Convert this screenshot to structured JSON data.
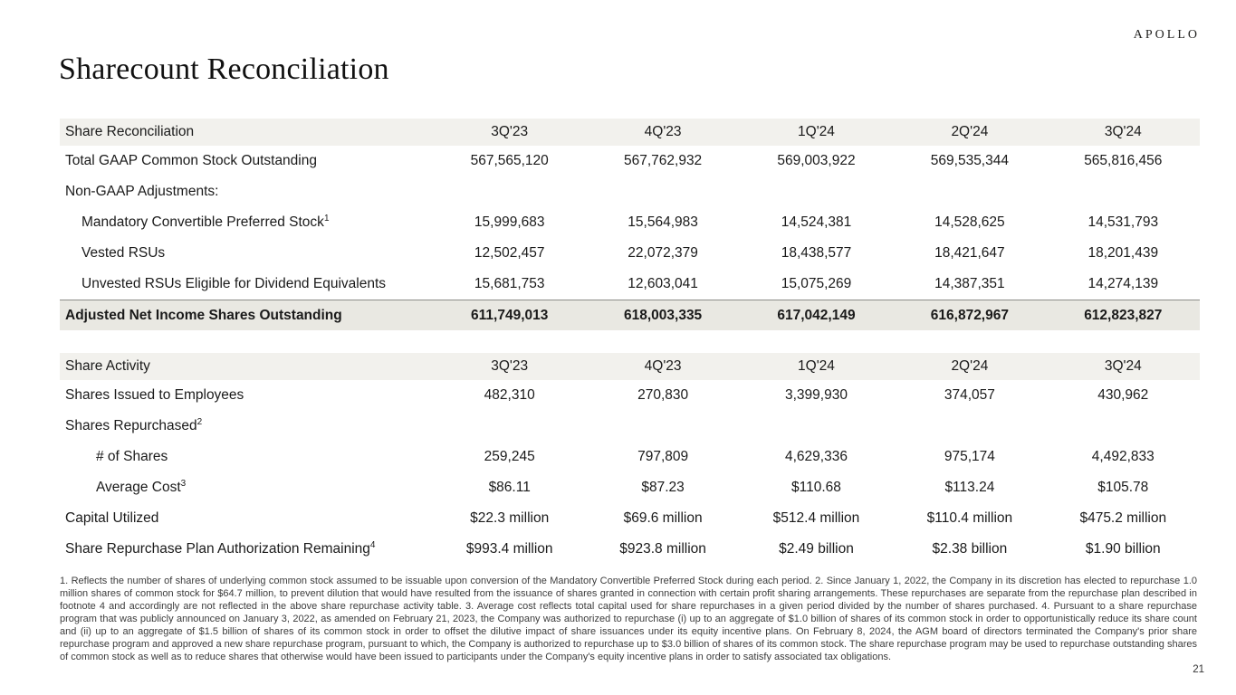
{
  "brand": {
    "logo": "APOLLO"
  },
  "page": {
    "title": "Sharecount Reconciliation",
    "number": "21"
  },
  "share_reconciliation": {
    "title": "Share Reconciliation",
    "columns": [
      "3Q'23",
      "4Q'23",
      "1Q'24",
      "2Q'24",
      "3Q'24"
    ],
    "rows": [
      {
        "label": "Total GAAP Common Stock Outstanding",
        "sup": "",
        "values": [
          "567,565,120",
          "567,762,932",
          "569,003,922",
          "569,535,344",
          "565,816,456"
        ]
      },
      {
        "label": "Non-GAAP Adjustments:",
        "sup": "",
        "values": [
          "",
          "",
          "",
          "",
          ""
        ]
      },
      {
        "label": "Mandatory Convertible Preferred Stock",
        "sup": "1",
        "values": [
          "15,999,683",
          "15,564,983",
          "14,524,381",
          "14,528,625",
          "14,531,793"
        ]
      },
      {
        "label": "Vested RSUs",
        "sup": "",
        "values": [
          "12,502,457",
          "22,072,379",
          "18,438,577",
          "18,421,647",
          "18,201,439"
        ]
      },
      {
        "label": "Unvested RSUs Eligible for Dividend Equivalents",
        "sup": "",
        "values": [
          "15,681,753",
          "12,603,041",
          "15,075,269",
          "14,387,351",
          "14,274,139"
        ]
      },
      {
        "label": "Adjusted Net Income Shares Outstanding",
        "sup": "",
        "values": [
          "611,749,013",
          "618,003,335",
          "617,042,149",
          "616,872,967",
          "612,823,827"
        ]
      }
    ]
  },
  "share_activity": {
    "title": "Share Activity",
    "columns": [
      "3Q'23",
      "4Q'23",
      "1Q'24",
      "2Q'24",
      "3Q'24"
    ],
    "rows": [
      {
        "label": "Shares Issued to Employees",
        "sup": "",
        "values": [
          "482,310",
          "270,830",
          "3,399,930",
          "374,057",
          "430,962"
        ]
      },
      {
        "label": "Shares Repurchased",
        "sup": "2",
        "values": [
          "",
          "",
          "",
          "",
          ""
        ]
      },
      {
        "label": "# of Shares",
        "sup": "",
        "values": [
          "259,245",
          "797,809",
          "4,629,336",
          "975,174",
          "4,492,833"
        ]
      },
      {
        "label": "Average Cost",
        "sup": "3",
        "values": [
          "$86.11",
          "$87.23",
          "$110.68",
          "$113.24",
          "$105.78"
        ]
      },
      {
        "label": "Capital Utilized",
        "sup": "",
        "values": [
          "$22.3 million",
          "$69.6 million",
          "$512.4 million",
          "$110.4 million",
          "$475.2 million"
        ]
      },
      {
        "label": "Share Repurchase Plan Authorization Remaining",
        "sup": "4",
        "values": [
          "$993.4 million",
          "$923.8 million",
          "$2.49 billion",
          "$2.38 billion",
          "$1.90 billion"
        ]
      }
    ]
  },
  "footnotes": {
    "text": "1. Reflects the number of shares of underlying common stock assumed to be issuable upon conversion of the Mandatory Convertible Preferred Stock during each period. 2. Since January 1, 2022, the Company in its discretion has elected to repurchase 1.0 million shares of common stock for $64.7 million, to prevent dilution that would have resulted from the issuance of shares granted in connection with certain profit sharing arrangements. These repurchases are separate from the repurchase plan described in footnote 4 and accordingly are not reflected in the above share repurchase activity table. 3. Average cost reflects total capital used for share repurchases in a given period divided by the number of shares purchased. 4. Pursuant to a share repurchase program that was publicly announced on January 3, 2022, as amended on February 21, 2023, the Company was authorized to repurchase (i) up to an aggregate of $1.0 billion of shares of its common stock in order to opportunistically reduce its share count and (ii) up to an aggregate of $1.5 billion of shares of its common stock in order to offset the dilutive impact of share issuances under its equity incentive plans. On February 8, 2024, the AGM board of directors terminated the Company's prior share repurchase program and approved a new share repurchase program, pursuant to which, the Company is authorized to repurchase up to $3.0 billion of shares of its common stock. The share repurchase program may be used to repurchase outstanding shares of common stock as well as to reduce shares that otherwise would have been issued to participants under the Company's equity incentive plans in order to satisfy associated tax obligations."
  }
}
